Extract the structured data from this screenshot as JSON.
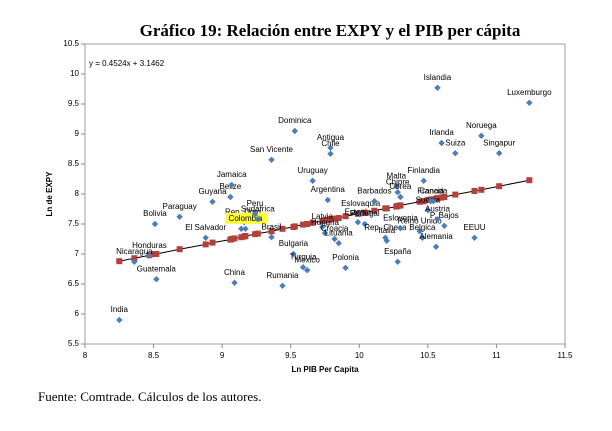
{
  "chart_data": {
    "type": "scatter",
    "title": "Gráfico 19: Relación entre EXPY y el PIB per cápita",
    "x_label": "Ln PIB Per Capita",
    "y_label": "Ln de EXPY",
    "equation": "y = 0.4524x + 3.1462",
    "source": "Fuente: Comtrade. Cálculos de los autores.",
    "xlim": [
      8,
      11.5
    ],
    "xticks": [
      8,
      8.5,
      9,
      9.5,
      10,
      10.5,
      11,
      11.5
    ],
    "ylim": [
      5.5,
      10.5
    ],
    "yticks": [
      5.5,
      6,
      6.5,
      7,
      7.5,
      8,
      8.5,
      9,
      9.5,
      10,
      10.5
    ],
    "grid": false,
    "color": "#4a7ebb",
    "fit_color": "#b4403c",
    "line_color": "#000000",
    "labels": [
      "India",
      "Nicaragua",
      "Honduras",
      "Bolivia",
      "Guatemala",
      "Paraguay",
      "El Salvador",
      "Guyana",
      "Belize",
      "Jamaica",
      "China",
      "Ecu.",
      "Rep. Dom.",
      "Colombia",
      "Peru",
      "Sudáfrica",
      "San Vicente",
      "Brasil",
      "Rumania",
      "Bulgaria",
      "Dominica",
      "Turquia",
      "Mexico",
      "Uruguay",
      "Latvia",
      "Hungria",
      "Argentina",
      "Antigua",
      "Chile",
      "Croacia",
      "Lituania",
      "Polonia",
      "Estonia",
      "Eslovaquia",
      "Portugal",
      "Barbados",
      "Rep. Checa",
      "Italia",
      "Malta",
      "Chipre",
      "España",
      "Corea",
      "Eslovenia",
      "Reino Unido",
      "Belgica",
      "Finlandia",
      "Suecia",
      "Francia",
      "Canada",
      "Alemania",
      "Islandia",
      "Austria",
      "Irlanda",
      "P. Bajos",
      "Suiza",
      "EEUU",
      "Noruega",
      "Singapur",
      "Luxemburgo"
    ],
    "x": [
      8.25,
      8.36,
      8.47,
      8.51,
      8.52,
      8.69,
      8.88,
      8.93,
      9.06,
      9.07,
      9.09,
      9.14,
      9.16,
      9.17,
      9.24,
      9.26,
      9.36,
      9.36,
      9.44,
      9.52,
      9.53,
      9.59,
      9.62,
      9.66,
      9.73,
      9.75,
      9.77,
      9.79,
      9.79,
      9.82,
      9.85,
      9.9,
      9.99,
      10.01,
      10.04,
      10.11,
      10.19,
      10.2,
      10.27,
      10.28,
      10.28,
      10.3,
      10.3,
      10.44,
      10.46,
      10.47,
      10.5,
      10.52,
      10.54,
      10.56,
      10.57,
      10.57,
      10.6,
      10.62,
      10.7,
      10.84,
      10.89,
      11.02,
      11.24
    ],
    "values": [
      5.9,
      6.87,
      6.97,
      7.5,
      6.58,
      7.62,
      7.27,
      7.87,
      7.95,
      8.15,
      6.52,
      7.42,
      7.53,
      7.42,
      7.67,
      7.58,
      8.57,
      7.28,
      6.47,
      7.0,
      9.05,
      6.78,
      6.73,
      8.22,
      7.45,
      7.35,
      7.9,
      8.77,
      8.67,
      7.25,
      7.18,
      6.77,
      7.53,
      7.67,
      7.5,
      7.88,
      7.27,
      7.22,
      8.13,
      8.03,
      6.87,
      7.95,
      7.43,
      7.38,
      7.27,
      8.22,
      7.73,
      7.88,
      7.88,
      7.12,
      9.77,
      7.58,
      8.85,
      7.47,
      8.68,
      7.27,
      8.97,
      8.68,
      9.52
    ],
    "fitted": [
      6.88,
      6.93,
      6.98,
      7.0,
      7.0,
      7.08,
      7.16,
      7.19,
      7.24,
      7.25,
      7.26,
      7.28,
      7.29,
      7.3,
      7.33,
      7.34,
      7.38,
      7.38,
      7.42,
      7.45,
      7.46,
      7.49,
      7.5,
      7.52,
      7.55,
      7.56,
      7.57,
      7.58,
      7.58,
      7.59,
      7.6,
      7.63,
      7.67,
      7.68,
      7.69,
      7.72,
      7.76,
      7.76,
      7.79,
      7.8,
      7.8,
      7.81,
      7.81,
      7.87,
      7.88,
      7.88,
      7.9,
      7.91,
      7.91,
      7.92,
      7.93,
      7.93,
      7.94,
      7.95,
      7.99,
      8.05,
      8.07,
      8.13,
      8.23
    ]
  }
}
